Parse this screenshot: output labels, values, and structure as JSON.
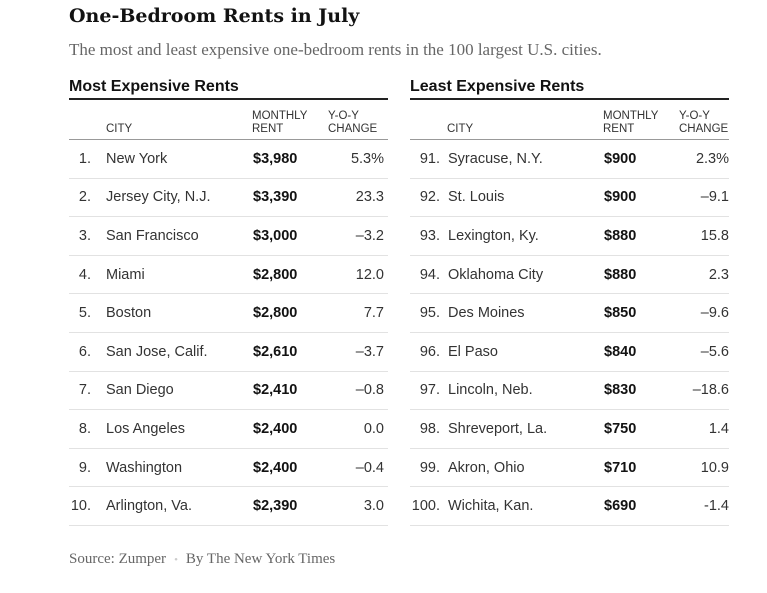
{
  "title": "One-Bedroom Rents in July",
  "subtitle": "The most and least expensive one-bedroom rents in the 100 largest U.S. cities.",
  "source": "Source: Zumper",
  "byline": "By The New York Times",
  "separator": "•",
  "chart_data": [
    {
      "type": "table",
      "title": "Most Expensive Rents",
      "columns": [
        "CITY",
        "MONTHLY RENT",
        "Y-O-Y CHANGE"
      ],
      "header": {
        "city": "CITY",
        "rent_1": "MONTHLY",
        "rent_2": "RENT",
        "chg_1": "Y-O-Y",
        "chg_2": "CHANGE"
      },
      "rows": [
        {
          "rank": "1.",
          "city": "New York",
          "rent": "$3,980",
          "change": "5.3%"
        },
        {
          "rank": "2.",
          "city": "Jersey City, N.J.",
          "rent": "$3,390",
          "change": "23.3"
        },
        {
          "rank": "3.",
          "city": "San Francisco",
          "rent": "$3,000",
          "change": "–3.2"
        },
        {
          "rank": "4.",
          "city": "Miami",
          "rent": "$2,800",
          "change": "12.0"
        },
        {
          "rank": "5.",
          "city": "Boston",
          "rent": "$2,800",
          "change": "7.7"
        },
        {
          "rank": "6.",
          "city": "San Jose, Calif.",
          "rent": "$2,610",
          "change": "–3.7"
        },
        {
          "rank": "7.",
          "city": "San Diego",
          "rent": "$2,410",
          "change": "–0.8"
        },
        {
          "rank": "8.",
          "city": "Los Angeles",
          "rent": "$2,400",
          "change": "0.0"
        },
        {
          "rank": "9.",
          "city": "Washington",
          "rent": "$2,400",
          "change": "–0.4"
        },
        {
          "rank": "10.",
          "city": "Arlington, Va.",
          "rent": "$2,390",
          "change": "3.0"
        }
      ]
    },
    {
      "type": "table",
      "title": "Least Expensive Rents",
      "columns": [
        "CITY",
        "MONTHLY RENT",
        "Y-O-Y CHANGE"
      ],
      "header": {
        "city": "CITY",
        "rent_1": "MONTHLY",
        "rent_2": "RENT",
        "chg_1": "Y-O-Y",
        "chg_2": "CHANGE"
      },
      "rows": [
        {
          "rank": "91.",
          "city": "Syracuse, N.Y.",
          "rent": "$900",
          "change": "2.3%"
        },
        {
          "rank": "92.",
          "city": "St. Louis",
          "rent": "$900",
          "change": "–9.1"
        },
        {
          "rank": "93.",
          "city": "Lexington, Ky.",
          "rent": "$880",
          "change": "15.8"
        },
        {
          "rank": "94.",
          "city": "Oklahoma City",
          "rent": "$880",
          "change": "2.3"
        },
        {
          "rank": "95.",
          "city": "Des Moines",
          "rent": "$850",
          "change": "–9.6"
        },
        {
          "rank": "96.",
          "city": "El Paso",
          "rent": "$840",
          "change": "–5.6"
        },
        {
          "rank": "97.",
          "city": "Lincoln, Neb.",
          "rent": "$830",
          "change": "–18.6"
        },
        {
          "rank": "98.",
          "city": "Shreveport, La.",
          "rent": "$750",
          "change": "1.4"
        },
        {
          "rank": "99.",
          "city": "Akron, Ohio",
          "rent": "$710",
          "change": "10.9"
        },
        {
          "rank": "100.",
          "city": "Wichita, Kan.",
          "rent": "$690",
          "change": "-1.4"
        }
      ]
    }
  ]
}
